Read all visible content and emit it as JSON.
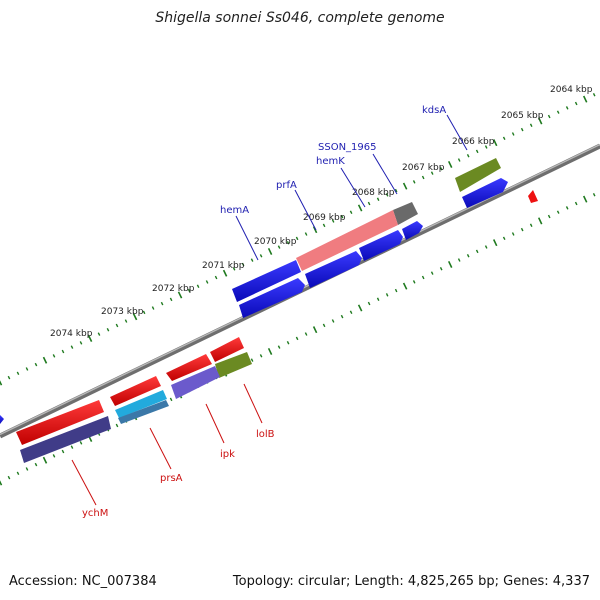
{
  "title": "Shigella sonnei Ss046, complete genome",
  "footer": {
    "accession": "Accession: NC_007384",
    "topology": "Topology: circular; Length: 4,825,265 bp; Genes: 4,337"
  },
  "ruler": {
    "labels": [
      "2064 kbp",
      "2065 kbp",
      "2066 kbp",
      "2067 kbp",
      "2068 kbp",
      "2069 kbp",
      "2070 kbp",
      "2071 kbp",
      "2072 kbp",
      "2073 kbp",
      "2074 kbp"
    ]
  },
  "genes_upper": [
    {
      "name": "kdsA",
      "color": "#1f1fb0"
    },
    {
      "name": "SSON_1965",
      "color": "#1f1fb0"
    },
    {
      "name": "hemK",
      "color": "#1f1fb0"
    },
    {
      "name": "prfA",
      "color": "#1f1fb0"
    },
    {
      "name": "hemA",
      "color": "#1f1fb0"
    }
  ],
  "genes_lower": [
    {
      "name": "lolB",
      "color": "#cc1111"
    },
    {
      "name": "ipk",
      "color": "#cc1111"
    },
    {
      "name": "prsA",
      "color": "#cc1111"
    },
    {
      "name": "ychM",
      "color": "#cc1111"
    }
  ],
  "colors": {
    "backbone": "#8a8a8a",
    "ticks": "#1f7a1f",
    "blue": "#1010e0",
    "red": "#ee1111",
    "olive": "#6b8a22",
    "pink": "#f07c80",
    "gray": "#6a6a6a",
    "navy": "#403c88",
    "cyan": "#22aadd",
    "purple": "#6b5acc"
  }
}
